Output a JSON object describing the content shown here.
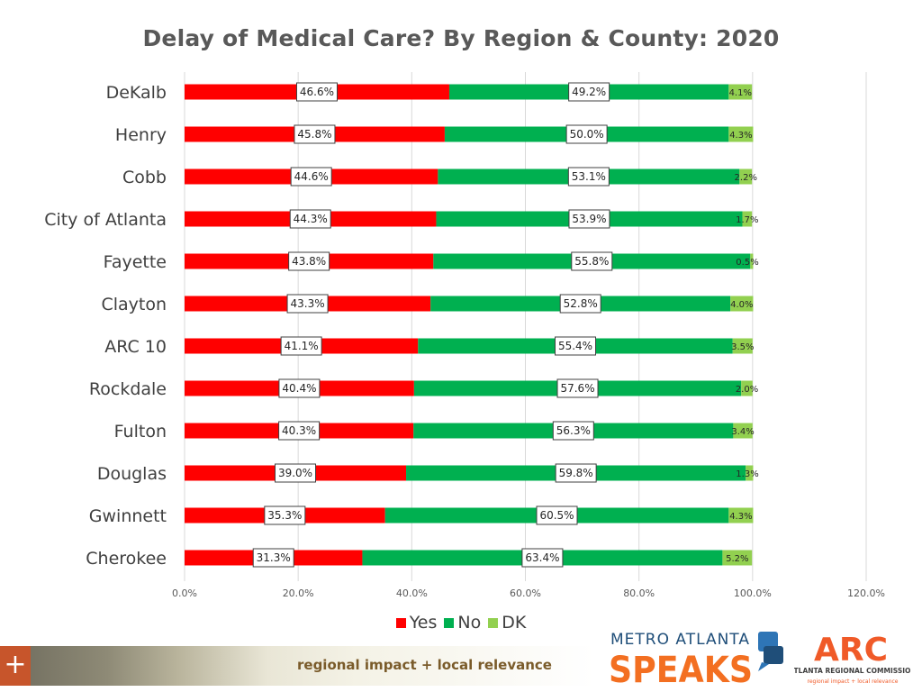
{
  "chart_data": {
    "type": "bar",
    "orientation": "horizontal",
    "stacked": true,
    "title": "Delay of Medical Care? By Region & County: 2020",
    "categories": [
      "DeKalb",
      "Henry",
      "Cobb",
      "City of Atlanta",
      "Fayette",
      "Clayton",
      "ARC 10",
      "Rockdale",
      "Fulton",
      "Douglas",
      "Gwinnett",
      "Cherokee"
    ],
    "series": [
      {
        "name": "Yes",
        "color": "#ff0000",
        "values": [
          46.6,
          45.8,
          44.6,
          44.3,
          43.8,
          43.3,
          41.1,
          40.4,
          40.3,
          39.0,
          35.3,
          31.3
        ],
        "labels": [
          "46.6%",
          "45.8%",
          "44.6%",
          "44.3%",
          "43.8%",
          "43.3%",
          "41.1%",
          "40.4%",
          "40.3%",
          "39.0%",
          "35.3%",
          "31.3%"
        ]
      },
      {
        "name": "No",
        "color": "#00b050",
        "values": [
          49.2,
          50.0,
          53.1,
          53.9,
          55.8,
          52.8,
          55.4,
          57.6,
          56.3,
          59.8,
          60.5,
          63.4
        ],
        "labels": [
          "49.2%",
          "50.0%",
          "53.1%",
          "53.9%",
          "55.8%",
          "52.8%",
          "55.4%",
          "57.6%",
          "56.3%",
          "59.8%",
          "60.5%",
          "63.4%"
        ]
      },
      {
        "name": "DK",
        "color": "#92d050",
        "values": [
          4.1,
          4.3,
          2.2,
          1.7,
          0.5,
          4.0,
          3.5,
          2.0,
          3.4,
          1.3,
          4.3,
          5.2
        ],
        "labels": [
          "4.1%",
          "4.3%",
          "2.2%",
          "1.7%",
          "0.5%",
          "4.0%",
          "3.5%",
          "2.0%",
          "3.4%",
          "1.3%",
          "4.3%",
          "5.2%"
        ]
      }
    ],
    "xlim": [
      0,
      120
    ],
    "xticks": [
      0,
      20,
      40,
      60,
      80,
      100,
      120
    ],
    "xtick_labels": [
      "0.0%",
      "20.0%",
      "40.0%",
      "60.0%",
      "80.0%",
      "100.0%",
      "120.0%"
    ],
    "grid": "vertical",
    "legend_position": "bottom"
  },
  "footer": {
    "tagline": "regional impact + local relevance",
    "plus": "+"
  },
  "logos": {
    "metro_top": "METRO ATLANTA",
    "metro_bottom": "SPEAKS",
    "arc_mark": "ARC",
    "arc_name": "ATLANTA REGIONAL COMMISSION",
    "arc_tag": "regional impact + local relevance"
  },
  "colors": {
    "yes": "#ff0000",
    "no": "#00b050",
    "dk": "#92d050",
    "mas_blue": "#1f4e79",
    "mas_orange": "#f36f21",
    "arc_orange": "#f05a28"
  }
}
